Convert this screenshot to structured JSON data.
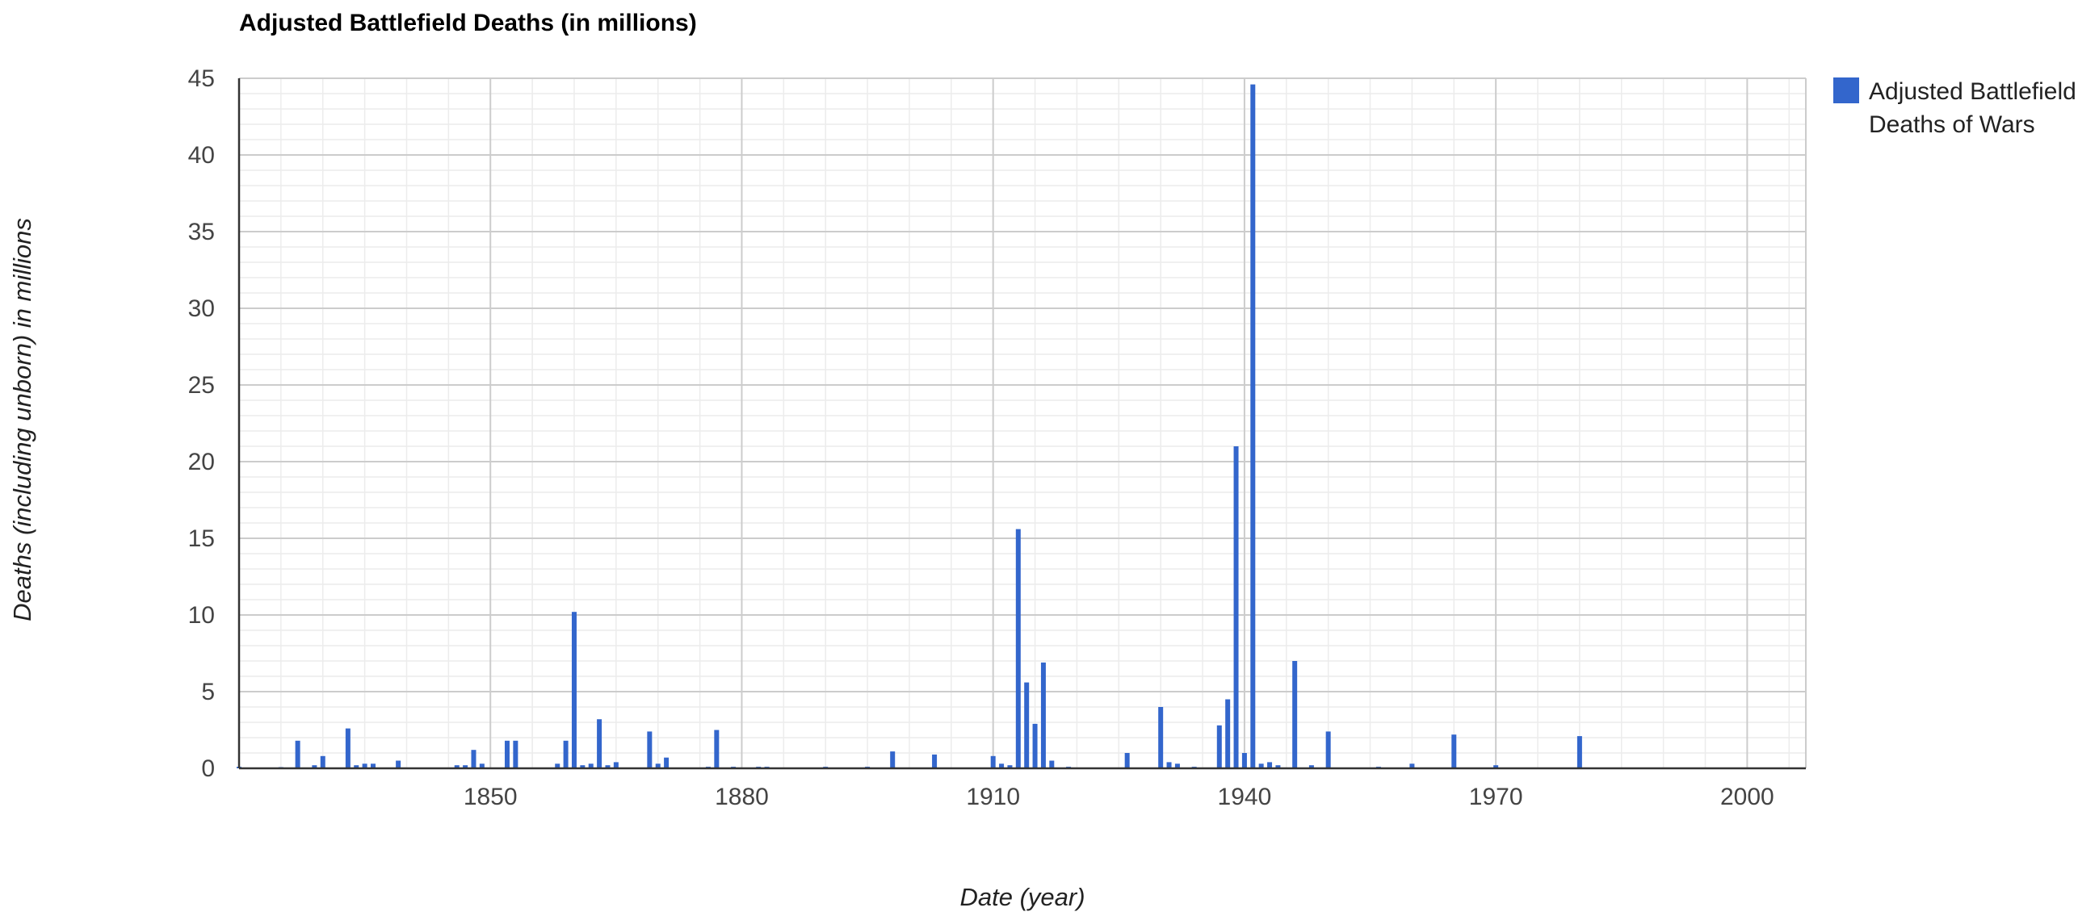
{
  "chart_data": {
    "type": "bar",
    "title": "Adjusted Battlefield Deaths (in millions)",
    "xlabel": "Date (year)",
    "ylabel": "Deaths (including unborn) in millions",
    "xlim": [
      1820,
      2007
    ],
    "ylim": [
      0,
      45
    ],
    "x_ticks": [
      1850,
      1880,
      1910,
      1940,
      1970,
      2000
    ],
    "y_ticks": [
      0,
      5,
      10,
      15,
      20,
      25,
      30,
      35,
      40,
      45
    ],
    "grid": true,
    "legend_position": "right",
    "series": [
      {
        "name": "Adjusted Battlefield Deaths of Wars",
        "color": "#3366cc",
        "x": [
          1820,
          1825,
          1827,
          1829,
          1830,
          1833,
          1834,
          1835,
          1836,
          1839,
          1846,
          1847,
          1848,
          1849,
          1852,
          1853,
          1858,
          1859,
          1860,
          1861,
          1862,
          1863,
          1864,
          1865,
          1869,
          1870,
          1871,
          1876,
          1877,
          1879,
          1882,
          1883,
          1890,
          1895,
          1898,
          1903,
          1910,
          1911,
          1912,
          1913,
          1914,
          1915,
          1916,
          1917,
          1919,
          1926,
          1930,
          1931,
          1932,
          1934,
          1937,
          1938,
          1939,
          1940,
          1941,
          1942,
          1943,
          1944,
          1946,
          1948,
          1950,
          1956,
          1960,
          1965,
          1970,
          1980
        ],
        "values": [
          0.1,
          0.05,
          1.8,
          0.2,
          0.8,
          2.6,
          0.2,
          0.3,
          0.3,
          0.5,
          0.2,
          0.2,
          1.2,
          0.3,
          1.8,
          1.8,
          0.3,
          1.8,
          10.2,
          0.2,
          0.3,
          3.2,
          0.2,
          0.4,
          2.4,
          0.3,
          0.7,
          0.1,
          2.5,
          0.1,
          0.1,
          0.1,
          0.1,
          0.1,
          1.1,
          0.9,
          0.8,
          0.3,
          0.2,
          15.6,
          5.6,
          2.9,
          6.9,
          0.5,
          0.1,
          1.0,
          4.0,
          0.4,
          0.3,
          0.1,
          2.8,
          4.5,
          21.0,
          1.0,
          44.6,
          0.3,
          0.4,
          0.2,
          7.0,
          0.2,
          2.4,
          0.1,
          0.3,
          2.2,
          0.2,
          2.1
        ]
      }
    ]
  }
}
